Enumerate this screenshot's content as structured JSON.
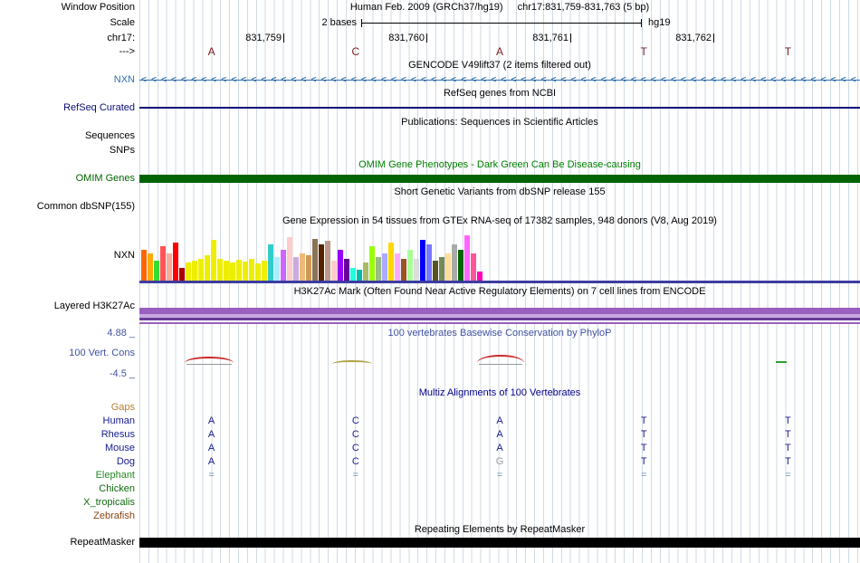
{
  "header": {
    "window_position_label": "Window Position",
    "assembly_title": "Human Feb. 2009 (GRCh37/hg19)",
    "position_title": "chr17:831,759-831,763 (5 bp)",
    "scale_label": "Scale",
    "scale_value": "2 bases",
    "assembly_tag": "hg19",
    "chrom_label": "chr17:",
    "ruler_positions": [
      "831,759",
      "831,760",
      "831,761",
      "831,762"
    ],
    "strand_label": "--->",
    "bases": [
      "A",
      "C",
      "A",
      "T",
      "T"
    ]
  },
  "tracks": {
    "gencode": {
      "title": "GENCODE V49lift37 (2 items filtered out)",
      "gene_label": "NXN",
      "strand_arrows": "<<<<<<<<<<<<<<<<<<<<<<<<<<<<<<<<<<<<<<<<<<<<<<<<<<<<<<<<<<<<<<<<<<<<<<<<"
    },
    "refseq": {
      "title": "RefSeq genes from NCBI",
      "label": "RefSeq Curated"
    },
    "publications": {
      "title": "Publications: Sequences in Scientific Articles",
      "sequences_label": "Sequences",
      "snps_label": "SNPs"
    },
    "omim": {
      "title": "OMIM Gene Phenotypes - Dark Green Can Be Disease-causing",
      "label": "OMIM Genes"
    },
    "dbsnp": {
      "title": "Short Genetic Variants from dbSNP release 155",
      "label": "Common dbSNP(155)"
    },
    "gtex": {
      "title": "Gene Expression in 54 tissues from GTEx RNA-seq of 17382 samples, 948 donors (V8, Aug 2019)",
      "label": "NXN",
      "bars": [
        {
          "c": "#FF6600",
          "h": 34
        },
        {
          "c": "#FFAA00",
          "h": 30
        },
        {
          "c": "#33DD33",
          "h": 22
        },
        {
          "c": "#FF5555",
          "h": 38
        },
        {
          "c": "#FFAA99",
          "h": 30
        },
        {
          "c": "#FF0000",
          "h": 42
        },
        {
          "c": "#AA0000",
          "h": 14
        },
        {
          "c": "#EEEE00",
          "h": 20
        },
        {
          "c": "#EEEE00",
          "h": 22
        },
        {
          "c": "#EEEE00",
          "h": 24
        },
        {
          "c": "#EEEE00",
          "h": 28
        },
        {
          "c": "#EEEE00",
          "h": 45
        },
        {
          "c": "#EEEE00",
          "h": 24
        },
        {
          "c": "#EEEE00",
          "h": 22
        },
        {
          "c": "#EEEE00",
          "h": 20
        },
        {
          "c": "#EEEE00",
          "h": 23
        },
        {
          "c": "#EEEE00",
          "h": 21
        },
        {
          "c": "#EEEE00",
          "h": 24
        },
        {
          "c": "#EEEE00",
          "h": 19
        },
        {
          "c": "#EEEE00",
          "h": 22
        },
        {
          "c": "#33CCCC",
          "h": 40
        },
        {
          "c": "#AAEEFF",
          "h": 26
        },
        {
          "c": "#CC66FF",
          "h": 34
        },
        {
          "c": "#FFCCCC",
          "h": 48
        },
        {
          "c": "#CCAADD",
          "h": 26
        },
        {
          "c": "#EEBB77",
          "h": 30
        },
        {
          "c": "#CC9955",
          "h": 28
        },
        {
          "c": "#8B7355",
          "h": 46
        },
        {
          "c": "#552200",
          "h": 40
        },
        {
          "c": "#BB9988",
          "h": 44
        },
        {
          "c": "#FFCCCC",
          "h": 22
        },
        {
          "c": "#9900FF",
          "h": 34
        },
        {
          "c": "#660099",
          "h": 24
        },
        {
          "c": "#22FFDD",
          "h": 14
        },
        {
          "c": "#00BBAA",
          "h": 12
        },
        {
          "c": "#AABB66",
          "h": 20
        },
        {
          "c": "#99FF00",
          "h": 38
        },
        {
          "c": "#99BB88",
          "h": 26
        },
        {
          "c": "#AAAAFF",
          "h": 30
        },
        {
          "c": "#FFD700",
          "h": 42
        },
        {
          "c": "#FFAAFF",
          "h": 30
        },
        {
          "c": "#995522",
          "h": 24
        },
        {
          "c": "#AAFF99",
          "h": 34
        },
        {
          "c": "#DDDDDD",
          "h": 24
        },
        {
          "c": "#0000FF",
          "h": 45
        },
        {
          "c": "#7777FF",
          "h": 40
        },
        {
          "c": "#555522",
          "h": 22
        },
        {
          "c": "#778855",
          "h": 26
        },
        {
          "c": "#FFDD99",
          "h": 30
        },
        {
          "c": "#AAAAAA",
          "h": 40
        },
        {
          "c": "#006600",
          "h": 34
        },
        {
          "c": "#FF66FF",
          "h": 50
        },
        {
          "c": "#FF5599",
          "h": 30
        },
        {
          "c": "#FF00BB",
          "h": 10
        }
      ]
    },
    "h3k27ac": {
      "title": "H3K27Ac Mark (Often Found Near Active Regulatory Elements) on 7 cell lines from ENCODE",
      "label": "Layered H3K27Ac"
    },
    "conservation": {
      "title": "100 vertebrates Basewise Conservation by PhyloP",
      "label": "100 Vert. Cons",
      "max_value": "4.88 _",
      "min_value": "-4.5 _"
    },
    "multiz": {
      "title": "Multiz Alignments of 100 Vertebrates",
      "rows": [
        {
          "name": "Gaps",
          "color": "#b8812f",
          "cells": []
        },
        {
          "name": "Human",
          "color": "#151b8c",
          "cells": [
            {
              "t": "A"
            },
            {
              "t": "C"
            },
            {
              "t": "A"
            },
            {
              "t": "T"
            },
            {
              "t": "T"
            }
          ]
        },
        {
          "name": "Rhesus",
          "color": "#151b8c",
          "cells": [
            {
              "t": "A"
            },
            {
              "t": "C"
            },
            {
              "t": "A"
            },
            {
              "t": "T"
            },
            {
              "t": "T"
            }
          ]
        },
        {
          "name": "Mouse",
          "color": "#151b8c",
          "cells": [
            {
              "t": "A"
            },
            {
              "t": "C"
            },
            {
              "t": "A"
            },
            {
              "t": "T"
            },
            {
              "t": "T"
            }
          ]
        },
        {
          "name": "Dog",
          "color": "#151b8c",
          "cells": [
            {
              "t": "A"
            },
            {
              "t": "C"
            },
            {
              "t": "G",
              "c": "#9a9a9a"
            },
            {
              "t": "T"
            },
            {
              "t": "T"
            }
          ]
        },
        {
          "name": "Elephant",
          "color": "#228b22",
          "cells": [
            {
              "t": "=",
              "c": "#6b8cba"
            },
            {
              "t": "=",
              "c": "#6b8cba"
            },
            {
              "t": "=",
              "c": "#6b8cba"
            },
            {
              "t": "=",
              "c": "#6b8cba"
            },
            {
              "t": "=",
              "c": "#6b8cba"
            }
          ]
        },
        {
          "name": "Chicken",
          "color": "#0f6a0f",
          "cells": []
        },
        {
          "name": "X_tropicalis",
          "color": "#0f6a0f",
          "cells": []
        },
        {
          "name": "Zebrafish",
          "color": "#8b4513",
          "cells": []
        }
      ]
    },
    "repeatmasker": {
      "title": "Repeating Elements by RepeatMasker",
      "label": "RepeatMasker"
    }
  },
  "colors": {
    "gencode_blue": "#2f6fad",
    "refseq_navy": "#0c0c78",
    "omim_green": "#006400",
    "omim_title_green": "#008000",
    "conservation_blue": "#4053a3",
    "multiz_title_navy": "#00008b",
    "gaps_label_orange": "#b8812f",
    "species_navy": "#151b8c",
    "elephant_green": "#228b22",
    "chicken_frog_green": "#0f6a0f",
    "zebrafish_brown": "#8b4513",
    "h3k27ac_purple": "#9a5fc0",
    "h3k27ac_light_purple": "#c9aae0",
    "h3k27ac_dark_purple": "#6a3d9a",
    "gtex_model_line": "#3d3da0",
    "repeat_black": "#000000",
    "grid_line": "#cfd9e6",
    "sequence_maroon": "#7a1a1a",
    "wiggle_red": "#cc2a2a",
    "wiggle_olive": "#b0a040",
    "wiggle_green": "#2ea02e"
  }
}
